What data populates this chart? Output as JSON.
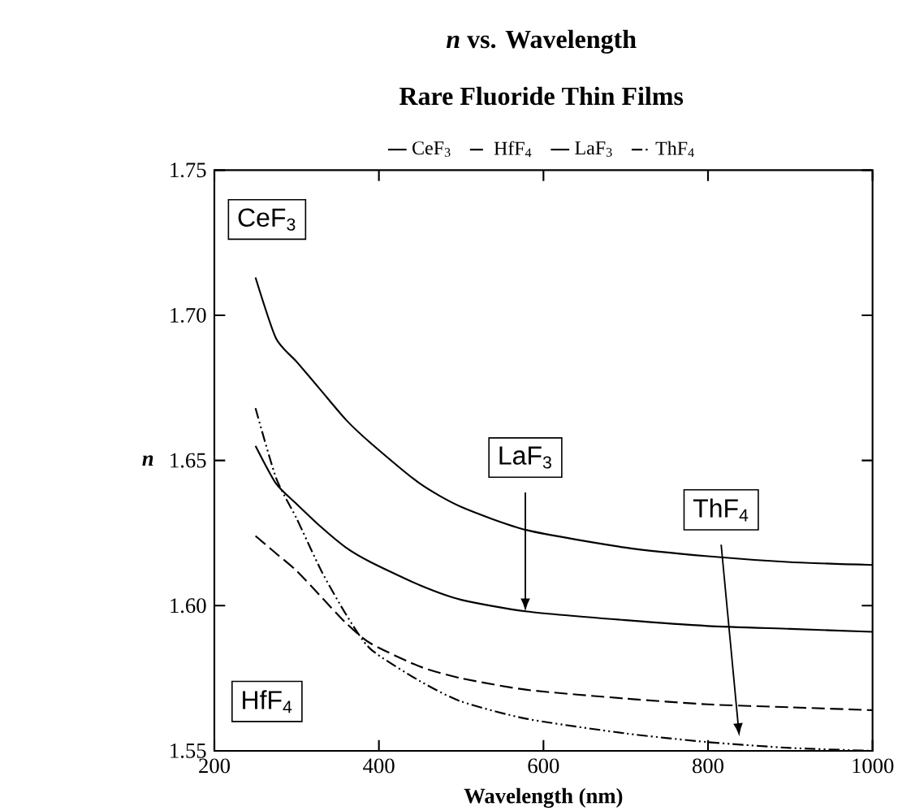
{
  "chart_data": {
    "type": "line",
    "title": "*n* vs. Wavelength",
    "subtitle": "Rare Fluoride Thin Films",
    "xlabel": "Wavelength (nm)",
    "ylabel": "n",
    "x": [
      250,
      275,
      300,
      330,
      360,
      390,
      450,
      500,
      580,
      700,
      800,
      900,
      1000
    ],
    "series": [
      {
        "name": "CeF$_{3}$",
        "color": "#000000",
        "line_style": "solid",
        "values": [
          1.713,
          1.692,
          1.684,
          1.674,
          1.664,
          1.656,
          1.642,
          1.634,
          1.626,
          1.62,
          1.617,
          1.615,
          1.614
        ]
      },
      {
        "name": "HfF$_{4}$",
        "color": "#000000",
        "line_style": "dashed",
        "values": [
          1.624,
          1.618,
          1.612,
          1.603,
          1.594,
          1.587,
          1.579,
          1.575,
          1.571,
          1.568,
          1.566,
          1.565,
          1.564
        ]
      },
      {
        "name": "LaF$_{3}$",
        "color": "#000000",
        "line_style": "solid",
        "values": [
          1.655,
          1.642,
          1.635,
          1.627,
          1.62,
          1.615,
          1.607,
          1.602,
          1.598,
          1.595,
          1.593,
          1.592,
          1.591
        ]
      },
      {
        "name": "ThF$_{4}$",
        "color": "#000000",
        "line_style": "dotted",
        "values": [
          1.668,
          1.644,
          1.63,
          1.612,
          1.597,
          1.585,
          1.574,
          1.567,
          1.561,
          1.556,
          1.553,
          1.551,
          1.55
        ]
      }
    ],
    "xlim": [
      200,
      1000
    ],
    "ylim": [
      1.55,
      1.75
    ],
    "xticks": [
      200,
      400,
      600,
      800,
      1000
    ],
    "yticks": [
      1.55,
      {
        "value": 1.6,
        "label": "1.60"
      },
      1.65,
      {
        "value": 1.7,
        "label": "1.70"
      },
      1.75
    ],
    "legend": "top",
    "grid": false,
    "marker": "none",
    "annotations": [
      "CeF$_{3}$",
      "HfF$_{4}$",
      {
        "text": "LaF$_{3}$",
        "x": 578,
        "y": 1.598
      },
      {
        "text": "ThF$_{4}$",
        "x": 838,
        "y": 1.555
      }
    ]
  }
}
